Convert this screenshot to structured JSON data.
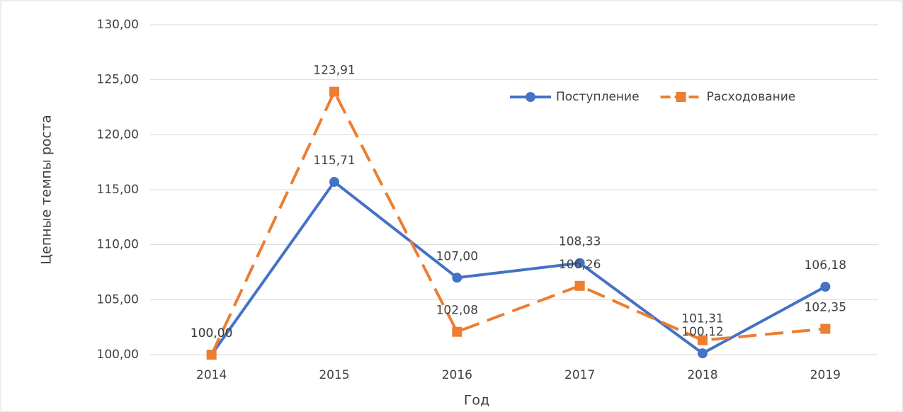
{
  "chart_data": {
    "type": "line",
    "xlabel": "Год",
    "ylabel": "Цепные темпы роста",
    "categories": [
      "2014",
      "2015",
      "2016",
      "2017",
      "2018",
      "2019"
    ],
    "series": [
      {
        "name": "Поступление",
        "color": "#4472c4",
        "marker": "circle",
        "dashed": false,
        "values": [
          100,
          115.71,
          107,
          108.33,
          100.12,
          106.18
        ],
        "value_labels": [
          "100,00",
          "115,71",
          "107,00",
          "108,33",
          "100,12",
          "106,18"
        ]
      },
      {
        "name": "Расходование",
        "color": "#ed7d31",
        "marker": "square",
        "dashed": true,
        "values": [
          100,
          123.91,
          102.08,
          106.26,
          101.31,
          102.35
        ],
        "value_labels": [
          "100,00",
          "123,91",
          "102,08",
          "106,26",
          "101,31",
          "102,35"
        ]
      }
    ],
    "ylim": [
      100,
      130
    ],
    "yticks": [
      {
        "value": 100,
        "label": "100,00"
      },
      {
        "value": 105,
        "label": "105,00"
      },
      {
        "value": 110,
        "label": "110,00"
      },
      {
        "value": 115,
        "label": "115,00"
      },
      {
        "value": 120,
        "label": "120,00"
      },
      {
        "value": 125,
        "label": "125,00"
      },
      {
        "value": 130,
        "label": "130,00"
      }
    ],
    "grid": true,
    "legend": "upper right"
  }
}
